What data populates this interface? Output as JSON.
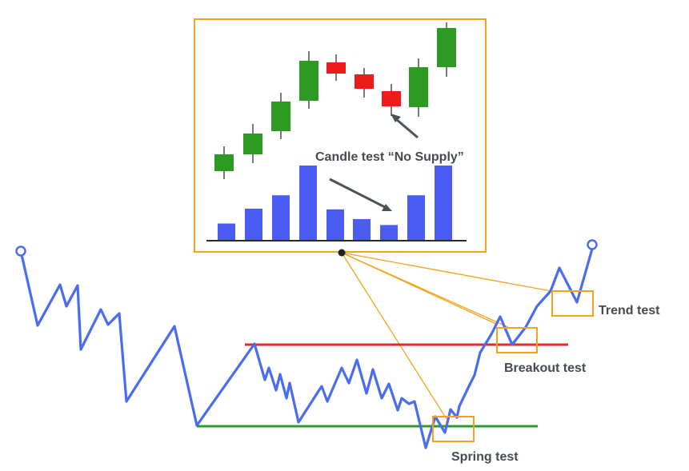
{
  "labels": {
    "candle_test": "Candle test “No Supply”",
    "trend_test": "Trend test",
    "breakout_test": "Breakout test",
    "spring_test": "Spring test"
  },
  "colors": {
    "price_line": "#4a6cf0",
    "resistance": "#e8262a",
    "support": "#2e9a2c",
    "callout": "#f3a31c",
    "bull_candle": "#2d9b22",
    "bear_candle": "#ee1b1b",
    "volume_bar": "#4a5cf2",
    "arrow": "#4a5358",
    "label_text": "#444b52"
  },
  "inset": {
    "candles": [
      "bull",
      "bull",
      "bull",
      "bull",
      "bear",
      "bear",
      "bear",
      "bull",
      "bull"
    ],
    "volume_relative": [
      0.22,
      0.42,
      0.6,
      1.0,
      0.41,
      0.28,
      0.2,
      0.6,
      1.0
    ]
  }
}
